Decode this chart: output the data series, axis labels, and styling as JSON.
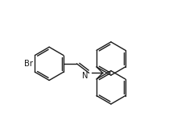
{
  "bg_color": "#ffffff",
  "line_color": "#1a1a1a",
  "lw": 1.0,
  "dbo": 0.08,
  "dbs": 0.12,
  "font_size": 7.2,
  "text_color": "#1a1a1a",
  "r": 0.75,
  "xlim": [
    0.0,
    8.5
  ],
  "ylim": [
    0.3,
    6.0
  ]
}
